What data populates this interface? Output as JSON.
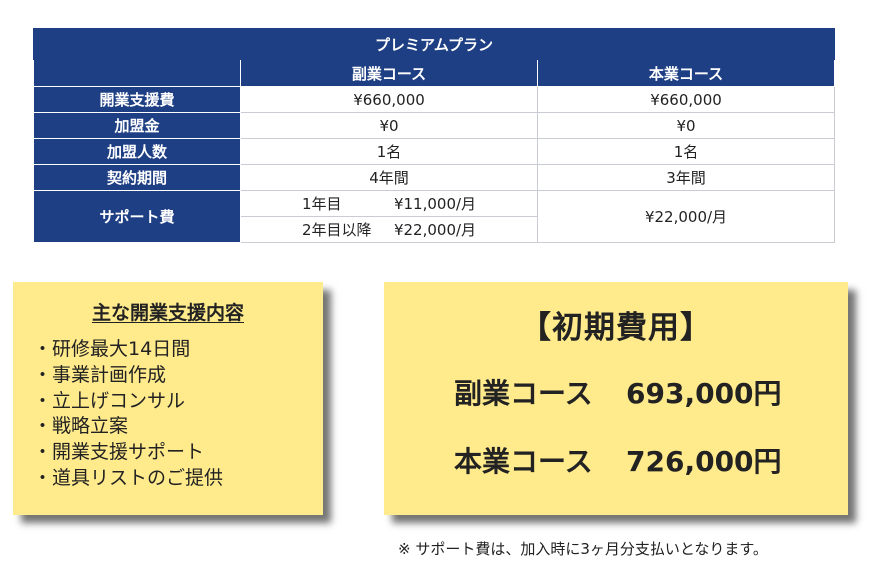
{
  "plan": {
    "title": "プレミアムプラン",
    "columns": [
      "副業コース",
      "本業コース"
    ],
    "rows": [
      {
        "label": "開業支援費",
        "side": "¥660,000",
        "main": "¥660,000"
      },
      {
        "label": "加盟金",
        "side": "¥0",
        "main": "¥0"
      },
      {
        "label": "加盟人数",
        "side": "1名",
        "main": "1名"
      },
      {
        "label": "契約期間",
        "side": "4年間",
        "main": "3年間"
      }
    ],
    "support_fee": {
      "label": "サポート費",
      "side_lines": [
        {
          "period": "1年目",
          "amount": "¥11,000/月"
        },
        {
          "period": "2年目以降",
          "amount": "¥22,000/月"
        }
      ],
      "main": "¥22,000/月"
    }
  },
  "support_content": {
    "title": "主な開業支援内容",
    "items": [
      "研修最大14日間",
      "事業計画作成",
      "立上げコンサル",
      "戦略立案",
      "開業支援サポート",
      "道具リストのご提供"
    ]
  },
  "initial_cost": {
    "title": "【初期費用】",
    "lines": [
      {
        "course": "副業コース",
        "amount": "693,000円"
      },
      {
        "course": "本業コース",
        "amount": "726,000円"
      }
    ]
  },
  "footnote": "※ サポート費は、加入時に3ヶ月分支払いとなります。",
  "colors": {
    "header_bg": "#1e3f84",
    "note_bg": "#ffea8c"
  }
}
